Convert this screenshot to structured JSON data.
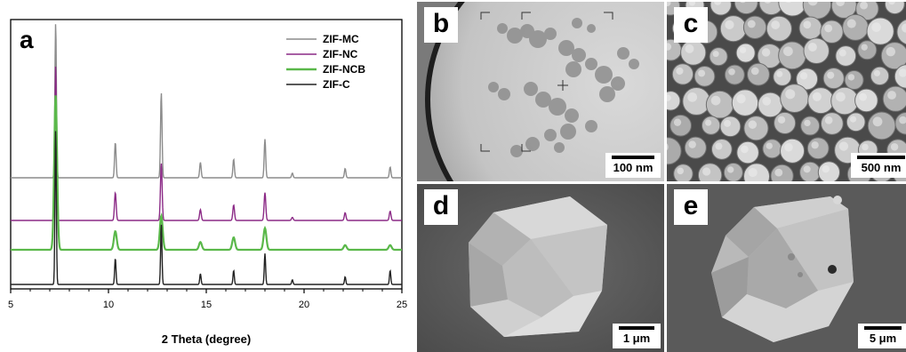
{
  "chart_data": {
    "type": "line",
    "panel_label": "a",
    "xlabel": "2 Theta (degree)",
    "ylabel": "",
    "xlim": [
      5,
      25
    ],
    "xticks": [
      5,
      10,
      15,
      20,
      25
    ],
    "grid": false,
    "legend_position": "top-right",
    "series": [
      {
        "name": "ZIF-MC",
        "color": "#8c8c8c",
        "width": 0.45,
        "peaks": [
          [
            7.3,
            1.0
          ],
          [
            10.35,
            0.23
          ],
          [
            12.7,
            0.55
          ],
          [
            14.7,
            0.1
          ],
          [
            16.4,
            0.12
          ],
          [
            18.0,
            0.25
          ],
          [
            19.4,
            0.03
          ],
          [
            22.1,
            0.06
          ],
          [
            24.4,
            0.07
          ]
        ]
      },
      {
        "name": "ZIF-NC",
        "color": "#8b2a86",
        "width": 0.5,
        "peaks": [
          [
            7.3,
            1.0
          ],
          [
            10.35,
            0.18
          ],
          [
            12.7,
            0.37
          ],
          [
            14.7,
            0.07
          ],
          [
            16.4,
            0.1
          ],
          [
            18.0,
            0.18
          ],
          [
            19.4,
            0.02
          ],
          [
            22.1,
            0.05
          ],
          [
            24.4,
            0.06
          ]
        ]
      },
      {
        "name": "ZIF-NCB",
        "color": "#5ab84a",
        "width": 0.85,
        "peaks": [
          [
            7.3,
            1.0
          ],
          [
            10.35,
            0.12
          ],
          [
            12.7,
            0.22
          ],
          [
            14.7,
            0.05
          ],
          [
            16.4,
            0.08
          ],
          [
            18.0,
            0.14
          ],
          [
            22.1,
            0.03
          ],
          [
            24.4,
            0.03
          ]
        ]
      },
      {
        "name": "ZIF-C",
        "color": "#222222",
        "width": 0.4,
        "peaks": [
          [
            7.3,
            1.0
          ],
          [
            10.35,
            0.17
          ],
          [
            12.7,
            0.39
          ],
          [
            14.7,
            0.07
          ],
          [
            16.4,
            0.09
          ],
          [
            18.0,
            0.2
          ],
          [
            19.4,
            0.03
          ],
          [
            22.1,
            0.05
          ],
          [
            24.4,
            0.09
          ]
        ]
      }
    ]
  },
  "panels": [
    {
      "letter": "b",
      "scale": "100 nm"
    },
    {
      "letter": "c",
      "scale": "500 nm"
    },
    {
      "letter": "d",
      "scale": "1 μm"
    },
    {
      "letter": "e",
      "scale": "5 μm"
    }
  ]
}
